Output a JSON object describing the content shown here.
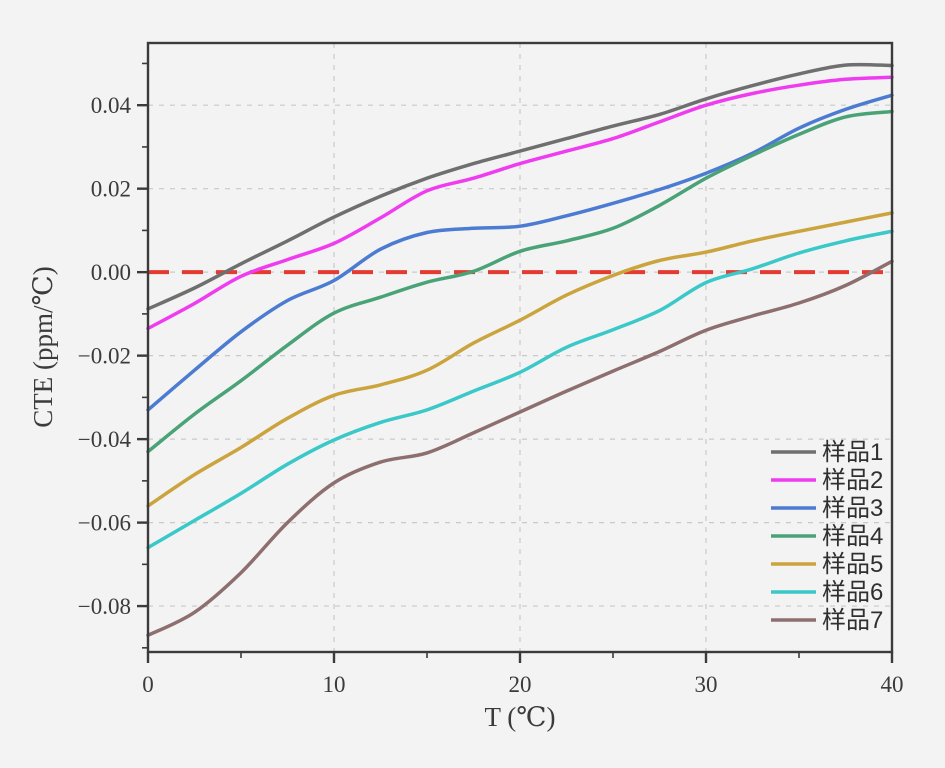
{
  "figure": {
    "background": "#f3f3f4",
    "plot_border_color": "#3b3b3b",
    "grid_color": "#c9c9c9",
    "text_color": "#3b3b3b"
  },
  "chart_data": {
    "type": "line",
    "title": "",
    "xlabel": "T (℃)",
    "ylabel": "CTE (ppm/℃)",
    "xlim": [
      0,
      40
    ],
    "ylim": [
      -0.091,
      0.0549
    ],
    "grid": {
      "style": "dashed",
      "x_values": [
        10,
        20,
        30
      ],
      "y_values": [
        0.04,
        0.02,
        0,
        -0.02,
        -0.04,
        -0.06,
        -0.08
      ]
    },
    "xticks": {
      "major": [
        {
          "value": 0,
          "label": "0"
        },
        {
          "value": 10,
          "label": "10"
        },
        {
          "value": 20,
          "label": "20"
        },
        {
          "value": 30,
          "label": "30"
        },
        {
          "value": 40,
          "label": "40"
        }
      ],
      "minor": [
        5,
        15,
        25,
        35
      ]
    },
    "yticks": {
      "major": [
        {
          "value": 0.04,
          "label": "0.04"
        },
        {
          "value": 0.02,
          "label": "0.02"
        },
        {
          "value": 0.0,
          "label": "0.00"
        },
        {
          "value": -0.02,
          "label": "−0.02"
        },
        {
          "value": -0.04,
          "label": "−0.04"
        },
        {
          "value": -0.06,
          "label": "−0.06"
        },
        {
          "value": -0.08,
          "label": "−0.08"
        }
      ],
      "minor": [
        0.05,
        0.03,
        0.01,
        -0.01,
        -0.03,
        -0.05,
        -0.07,
        -0.09
      ]
    },
    "zero_line": {
      "value": 0,
      "color": "#e33b32",
      "style": "dashed",
      "width": 4
    },
    "x": [
      0,
      2.5,
      5,
      7.5,
      10,
      12.5,
      15,
      17.5,
      20,
      22.5,
      25,
      27.5,
      30,
      32.5,
      35,
      37.5,
      40
    ],
    "series": [
      {
        "name": "样品1",
        "color": "#6f6f6f",
        "values": [
          -0.0088,
          -0.0038,
          0.002,
          0.0075,
          0.0132,
          0.0182,
          0.0225,
          0.026,
          0.029,
          0.032,
          0.035,
          0.0378,
          0.0415,
          0.0447,
          0.0475,
          0.0496,
          0.0495
        ]
      },
      {
        "name": "样品2",
        "color": "#ef3cf0",
        "values": [
          -0.0135,
          -0.0075,
          -0.001,
          0.003,
          0.0069,
          0.013,
          0.0195,
          0.0225,
          0.026,
          0.029,
          0.032,
          0.036,
          0.04,
          0.0428,
          0.0448,
          0.0462,
          0.0467
        ]
      },
      {
        "name": "样品3",
        "color": "#4c7bd2",
        "values": [
          -0.033,
          -0.0235,
          -0.0143,
          -0.0068,
          -0.002,
          0.0055,
          0.0095,
          0.0105,
          0.011,
          0.0135,
          0.0165,
          0.0198,
          0.0237,
          0.0285,
          0.0345,
          0.039,
          0.0424
        ]
      },
      {
        "name": "样品4",
        "color": "#4aa377",
        "values": [
          -0.043,
          -0.034,
          -0.026,
          -0.0175,
          -0.0098,
          -0.006,
          -0.0024,
          0.0002,
          0.005,
          0.0075,
          0.0105,
          0.016,
          0.0225,
          0.028,
          0.033,
          0.0372,
          0.0385
        ]
      },
      {
        "name": "样品5",
        "color": "#cba43d",
        "values": [
          -0.056,
          -0.0485,
          -0.042,
          -0.035,
          -0.0295,
          -0.027,
          -0.0235,
          -0.017,
          -0.0115,
          -0.0055,
          -0.0008,
          0.0028,
          0.0048,
          0.0075,
          0.0098,
          0.012,
          0.0142
        ]
      },
      {
        "name": "样品6",
        "color": "#3ac8c8",
        "values": [
          -0.066,
          -0.0595,
          -0.053,
          -0.046,
          -0.0402,
          -0.036,
          -0.033,
          -0.0285,
          -0.024,
          -0.018,
          -0.0138,
          -0.0092,
          -0.0025,
          0.0008,
          0.0046,
          0.0075,
          0.0098
        ]
      },
      {
        "name": "样品7",
        "color": "#8e6f6f",
        "values": [
          -0.087,
          -0.0815,
          -0.072,
          -0.06,
          -0.0505,
          -0.0455,
          -0.0433,
          -0.0385,
          -0.0335,
          -0.0285,
          -0.0237,
          -0.019,
          -0.0139,
          -0.0105,
          -0.0074,
          -0.0032,
          0.0026
        ]
      }
    ],
    "legend": {
      "position": "lower right",
      "entries": [
        "样品1",
        "样品2",
        "样品3",
        "样品4",
        "样品5",
        "样品6",
        "样品7"
      ]
    }
  }
}
